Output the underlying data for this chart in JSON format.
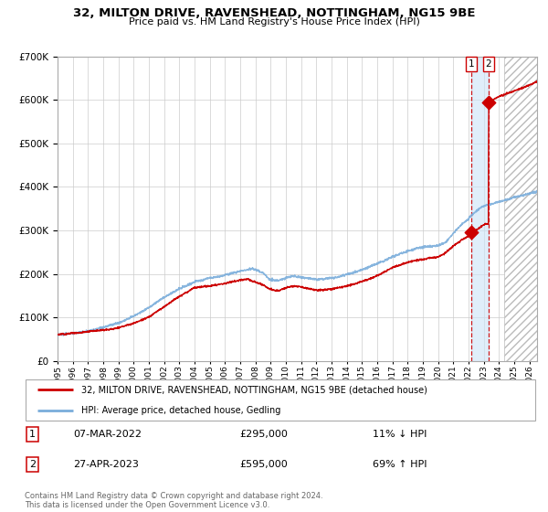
{
  "title": "32, MILTON DRIVE, RAVENSHEAD, NOTTINGHAM, NG15 9BE",
  "subtitle": "Price paid vs. HM Land Registry's House Price Index (HPI)",
  "legend_line1": "32, MILTON DRIVE, RAVENSHEAD, NOTTINGHAM, NG15 9BE (detached house)",
  "legend_line2": "HPI: Average price, detached house, Gedling",
  "transaction1_date": "07-MAR-2022",
  "transaction1_price": 295000,
  "transaction1_hpi": "11% ↓ HPI",
  "transaction2_date": "27-APR-2023",
  "transaction2_price": 595000,
  "transaction2_hpi": "69% ↑ HPI",
  "footer": "Contains HM Land Registry data © Crown copyright and database right 2024.\nThis data is licensed under the Open Government Licence v3.0.",
  "red_color": "#cc0000",
  "blue_color": "#7aaddb",
  "bg_color": "#ffffff",
  "grid_color": "#cccccc",
  "ylim": [
    0,
    700000
  ],
  "xlim_start": 1995.0,
  "xlim_end": 2026.5,
  "future_start": 2024.33,
  "shade_x1": 2022.17,
  "shade_x2": 2023.32,
  "transaction1_x": 2022.17,
  "transaction2_x": 2023.32,
  "transaction1_y": 295000,
  "transaction2_y": 595000,
  "hpi_anchors": [
    [
      1995.0,
      63000
    ],
    [
      1996.0,
      67000
    ],
    [
      1997.0,
      72000
    ],
    [
      1998.0,
      80000
    ],
    [
      1999.0,
      90000
    ],
    [
      2000.0,
      105000
    ],
    [
      2001.0,
      125000
    ],
    [
      2002.0,
      148000
    ],
    [
      2003.0,
      168000
    ],
    [
      2004.0,
      185000
    ],
    [
      2005.0,
      193000
    ],
    [
      2006.0,
      200000
    ],
    [
      2007.0,
      210000
    ],
    [
      2007.8,
      215000
    ],
    [
      2008.5,
      205000
    ],
    [
      2009.0,
      188000
    ],
    [
      2009.5,
      185000
    ],
    [
      2010.0,
      192000
    ],
    [
      2010.5,
      196000
    ],
    [
      2011.0,
      193000
    ],
    [
      2011.5,
      190000
    ],
    [
      2012.0,
      187000
    ],
    [
      2012.5,
      188000
    ],
    [
      2013.0,
      190000
    ],
    [
      2013.5,
      192000
    ],
    [
      2014.0,
      198000
    ],
    [
      2014.5,
      202000
    ],
    [
      2015.0,
      208000
    ],
    [
      2015.5,
      215000
    ],
    [
      2016.0,
      222000
    ],
    [
      2016.5,
      230000
    ],
    [
      2017.0,
      238000
    ],
    [
      2017.5,
      244000
    ],
    [
      2018.0,
      250000
    ],
    [
      2018.5,
      255000
    ],
    [
      2019.0,
      258000
    ],
    [
      2019.5,
      260000
    ],
    [
      2020.0,
      262000
    ],
    [
      2020.5,
      270000
    ],
    [
      2021.0,
      290000
    ],
    [
      2021.5,
      308000
    ],
    [
      2022.0,
      322000
    ],
    [
      2022.17,
      330000
    ],
    [
      2022.5,
      340000
    ],
    [
      2023.0,
      352000
    ],
    [
      2023.32,
      355000
    ],
    [
      2023.8,
      360000
    ],
    [
      2024.0,
      362000
    ],
    [
      2024.33,
      365000
    ],
    [
      2025.0,
      372000
    ],
    [
      2026.0,
      380000
    ],
    [
      2026.5,
      385000
    ]
  ],
  "prop_anchors": [
    [
      1995.0,
      57000
    ],
    [
      1996.0,
      60000
    ],
    [
      1997.0,
      64000
    ],
    [
      1998.0,
      68000
    ],
    [
      1999.0,
      74000
    ],
    [
      2000.0,
      85000
    ],
    [
      2001.0,
      100000
    ],
    [
      2002.0,
      125000
    ],
    [
      2003.0,
      148000
    ],
    [
      2004.0,
      168000
    ],
    [
      2005.0,
      172000
    ],
    [
      2006.0,
      178000
    ],
    [
      2007.0,
      185000
    ],
    [
      2007.5,
      188000
    ],
    [
      2008.0,
      182000
    ],
    [
      2008.5,
      175000
    ],
    [
      2009.0,
      165000
    ],
    [
      2009.5,
      162000
    ],
    [
      2010.0,
      168000
    ],
    [
      2010.5,
      172000
    ],
    [
      2011.0,
      170000
    ],
    [
      2011.5,
      166000
    ],
    [
      2012.0,
      162000
    ],
    [
      2012.5,
      163000
    ],
    [
      2013.0,
      165000
    ],
    [
      2013.5,
      168000
    ],
    [
      2014.0,
      172000
    ],
    [
      2014.5,
      176000
    ],
    [
      2015.0,
      182000
    ],
    [
      2015.5,
      188000
    ],
    [
      2016.0,
      195000
    ],
    [
      2016.5,
      205000
    ],
    [
      2017.0,
      215000
    ],
    [
      2017.5,
      222000
    ],
    [
      2018.0,
      228000
    ],
    [
      2018.5,
      232000
    ],
    [
      2019.0,
      235000
    ],
    [
      2019.5,
      238000
    ],
    [
      2020.0,
      240000
    ],
    [
      2020.5,
      250000
    ],
    [
      2021.0,
      265000
    ],
    [
      2021.5,
      278000
    ],
    [
      2022.0,
      288000
    ],
    [
      2022.17,
      295000
    ],
    [
      2022.5,
      302000
    ],
    [
      2023.0,
      315000
    ],
    [
      2023.31,
      318000
    ],
    [
      2023.32,
      595000
    ],
    [
      2023.5,
      600000
    ],
    [
      2024.0,
      610000
    ],
    [
      2024.33,
      615000
    ],
    [
      2025.0,
      625000
    ],
    [
      2026.0,
      638000
    ],
    [
      2026.5,
      645000
    ]
  ]
}
